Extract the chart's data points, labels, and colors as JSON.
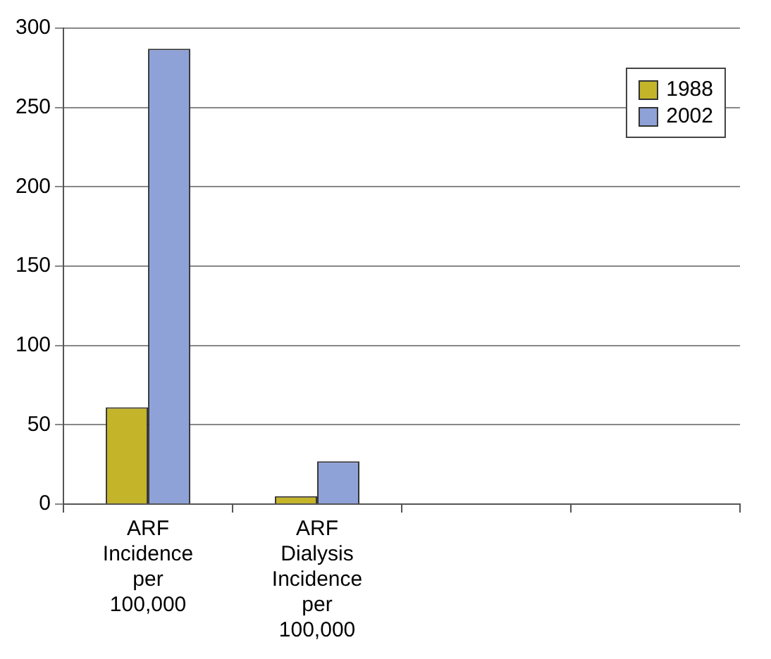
{
  "chart_data": {
    "type": "bar",
    "categories": [
      "ARF Incidence per 100,000",
      "ARF Dialysis Incidence per 100,000",
      null,
      null
    ],
    "series": [
      {
        "name": "1988",
        "color": "#c4b42a",
        "values": [
          61,
          5,
          null,
          null
        ]
      },
      {
        "name": "2002",
        "color": "#8ea2d8",
        "values": [
          287,
          27,
          null,
          null
        ]
      }
    ],
    "ylim": [
      0,
      300
    ],
    "yticks": [
      0,
      50,
      100,
      150,
      200,
      250,
      300
    ],
    "grid": "y",
    "legend": "top right"
  }
}
